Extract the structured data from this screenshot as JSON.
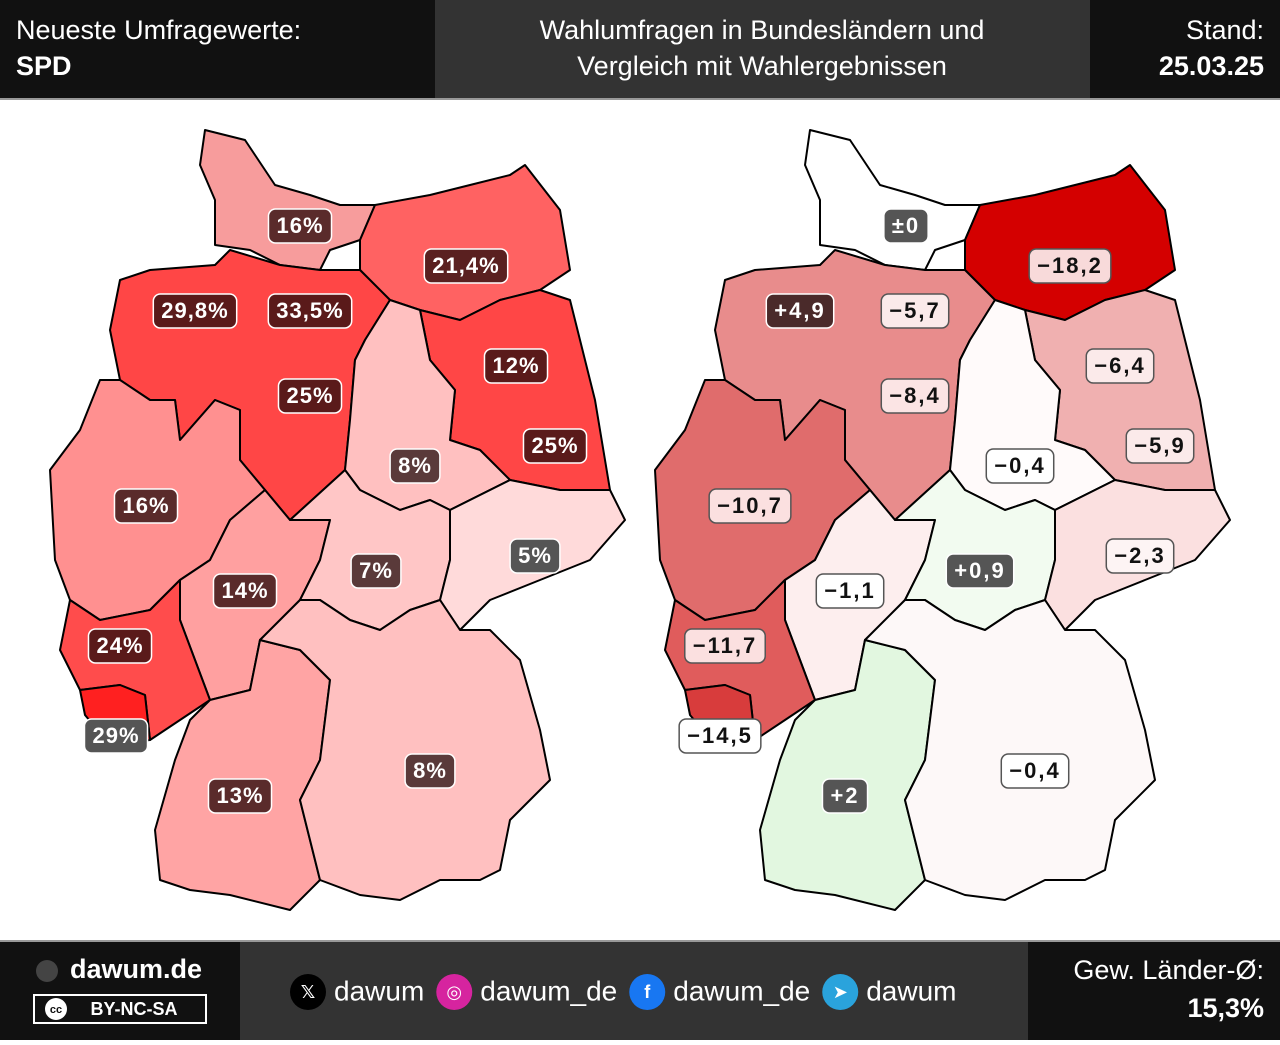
{
  "header": {
    "left_title": "Neueste Umfragewerte:",
    "party": "SPD",
    "title_line1": "Wahlumfragen in Bundesländern und",
    "title_line2": "Vergleich mit Wahlergebnissen",
    "stand_label": "Stand:",
    "date": "25.03.25"
  },
  "maps": [
    {
      "regions": [
        {
          "label": "16%",
          "color": "#f79c9c",
          "badge": "#5a2b2b"
        },
        {
          "label": "21,4%",
          "color": "#ff6262",
          "badge": "#5a2020"
        },
        {
          "label": "33,5%",
          "color": "#e4202c",
          "badge": "#5a1a1a"
        },
        {
          "label": "29,8%",
          "color": "#f03a3a",
          "badge": "#5a1a1a"
        },
        {
          "label": "25%",
          "color": "#ff4646",
          "badge": "#5a1a1a"
        },
        {
          "label": "12%",
          "color": "#ff7a7a",
          "badge": "#5a1a1a"
        },
        {
          "label": "25%",
          "color": "#ff4646",
          "badge": "#5a1a1a"
        },
        {
          "label": "8%",
          "color": "#ffc0c0",
          "badge": "#5a3a3a"
        },
        {
          "label": "16%",
          "color": "#ff9090",
          "badge": "#5a2b2b"
        },
        {
          "label": "14%",
          "color": "#ffa0a0",
          "badge": "#5a2b2b"
        },
        {
          "label": "7%",
          "color": "#ffc6c6",
          "badge": "#5a3a3a"
        },
        {
          "label": "5%",
          "color": "#ffdada",
          "badge": "#555555"
        },
        {
          "label": "24%",
          "color": "#ff4c4c",
          "badge": "#5a1a1a"
        },
        {
          "label": "29%",
          "color": "#ff2020",
          "badge": "#555555"
        },
        {
          "label": "13%",
          "color": "#ffa4a4",
          "badge": "#5a2b2b"
        },
        {
          "label": "8%",
          "color": "#ffc0c0",
          "badge": "#5a3a3a"
        }
      ]
    },
    {
      "regions": [
        {
          "label": "±0",
          "color": "#ffffff",
          "badge": "#555555"
        },
        {
          "label": "−18,2",
          "color": "#d40000",
          "badge": "#f8dada"
        },
        {
          "label": "−5,7",
          "color": "#f2c4c4",
          "badge": "#fbeaea"
        },
        {
          "label": "+4,9",
          "color": "#a8dfa8",
          "badge": "#4a2a2a"
        },
        {
          "label": "−8,4",
          "color": "#e88c8c",
          "badge": "#fbe4e4"
        },
        {
          "label": "−6,4",
          "color": "#f3b4b4",
          "badge": "#fbeaea"
        },
        {
          "label": "−5,9",
          "color": "#f0b0b0",
          "badge": "#fbeaea"
        },
        {
          "label": "−0,4",
          "color": "#fffafa",
          "badge": "#ffffff"
        },
        {
          "label": "−10,7",
          "color": "#e06c6c",
          "badge": "#fbe0e0"
        },
        {
          "label": "−1,1",
          "color": "#fdeeee",
          "badge": "#ffffff"
        },
        {
          "label": "+0,9",
          "color": "#f2fbf0",
          "badge": "#555555"
        },
        {
          "label": "−2,3",
          "color": "#fbe0e0",
          "badge": "#fdf4f4"
        },
        {
          "label": "−11,7",
          "color": "#e05c5c",
          "badge": "#fbe0e0"
        },
        {
          "label": "−14,5",
          "color": "#d83c3c",
          "badge": "#ffffff"
        },
        {
          "label": "+2",
          "color": "#e2f7e0",
          "badge": "#555555"
        },
        {
          "label": "−0,4",
          "color": "#fdf8f8",
          "badge": "#ffffff"
        }
      ]
    }
  ],
  "footer": {
    "site": "dawum.de",
    "license": "BY-NC-SA",
    "cc": "cc",
    "social": [
      {
        "icon": "𝕏",
        "handle": "dawum"
      },
      {
        "icon": "◎",
        "handle": "dawum_de"
      },
      {
        "icon": "f",
        "handle": "dawum_de"
      },
      {
        "icon": "➤",
        "handle": "dawum"
      }
    ],
    "avg_label": "Gew. Länder-Ø:",
    "avg_value": "15,3%"
  }
}
